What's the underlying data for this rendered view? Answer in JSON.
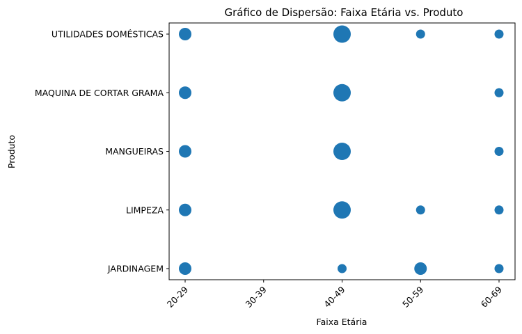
{
  "chart_data": {
    "type": "scatter",
    "title": "Gráfico de Dispersão: Faixa Etária vs. Produto",
    "xlabel": "Faixa Etária",
    "ylabel": "Produto",
    "x_categories": [
      "20-29",
      "30-39",
      "40-49",
      "50-59",
      "60-69"
    ],
    "y_categories": [
      "JARDINAGEM",
      "LIMPEZA",
      "MANGUEIRAS",
      "MAQUINA DE CORTAR GRAMA",
      "UTILIDADES DOMÉSTICAS"
    ],
    "grid": false,
    "point_color": "#1f77b4",
    "points": [
      {
        "x": "20-29",
        "y": "UTILIDADES DOMÉSTICAS",
        "size": 2
      },
      {
        "x": "40-49",
        "y": "UTILIDADES DOMÉSTICAS",
        "size": 3
      },
      {
        "x": "50-59",
        "y": "UTILIDADES DOMÉSTICAS",
        "size": 1
      },
      {
        "x": "60-69",
        "y": "UTILIDADES DOMÉSTICAS",
        "size": 1
      },
      {
        "x": "20-29",
        "y": "MAQUINA DE CORTAR GRAMA",
        "size": 2
      },
      {
        "x": "40-49",
        "y": "MAQUINA DE CORTAR GRAMA",
        "size": 3
      },
      {
        "x": "60-69",
        "y": "MAQUINA DE CORTAR GRAMA",
        "size": 1
      },
      {
        "x": "20-29",
        "y": "MANGUEIRAS",
        "size": 2
      },
      {
        "x": "40-49",
        "y": "MANGUEIRAS",
        "size": 3
      },
      {
        "x": "60-69",
        "y": "MANGUEIRAS",
        "size": 1
      },
      {
        "x": "20-29",
        "y": "LIMPEZA",
        "size": 2
      },
      {
        "x": "40-49",
        "y": "LIMPEZA",
        "size": 3
      },
      {
        "x": "50-59",
        "y": "LIMPEZA",
        "size": 1
      },
      {
        "x": "60-69",
        "y": "LIMPEZA",
        "size": 1
      },
      {
        "x": "20-29",
        "y": "JARDINAGEM",
        "size": 2
      },
      {
        "x": "40-49",
        "y": "JARDINAGEM",
        "size": 1
      },
      {
        "x": "50-59",
        "y": "JARDINAGEM",
        "size": 2
      },
      {
        "x": "60-69",
        "y": "JARDINAGEM",
        "size": 1
      }
    ]
  }
}
